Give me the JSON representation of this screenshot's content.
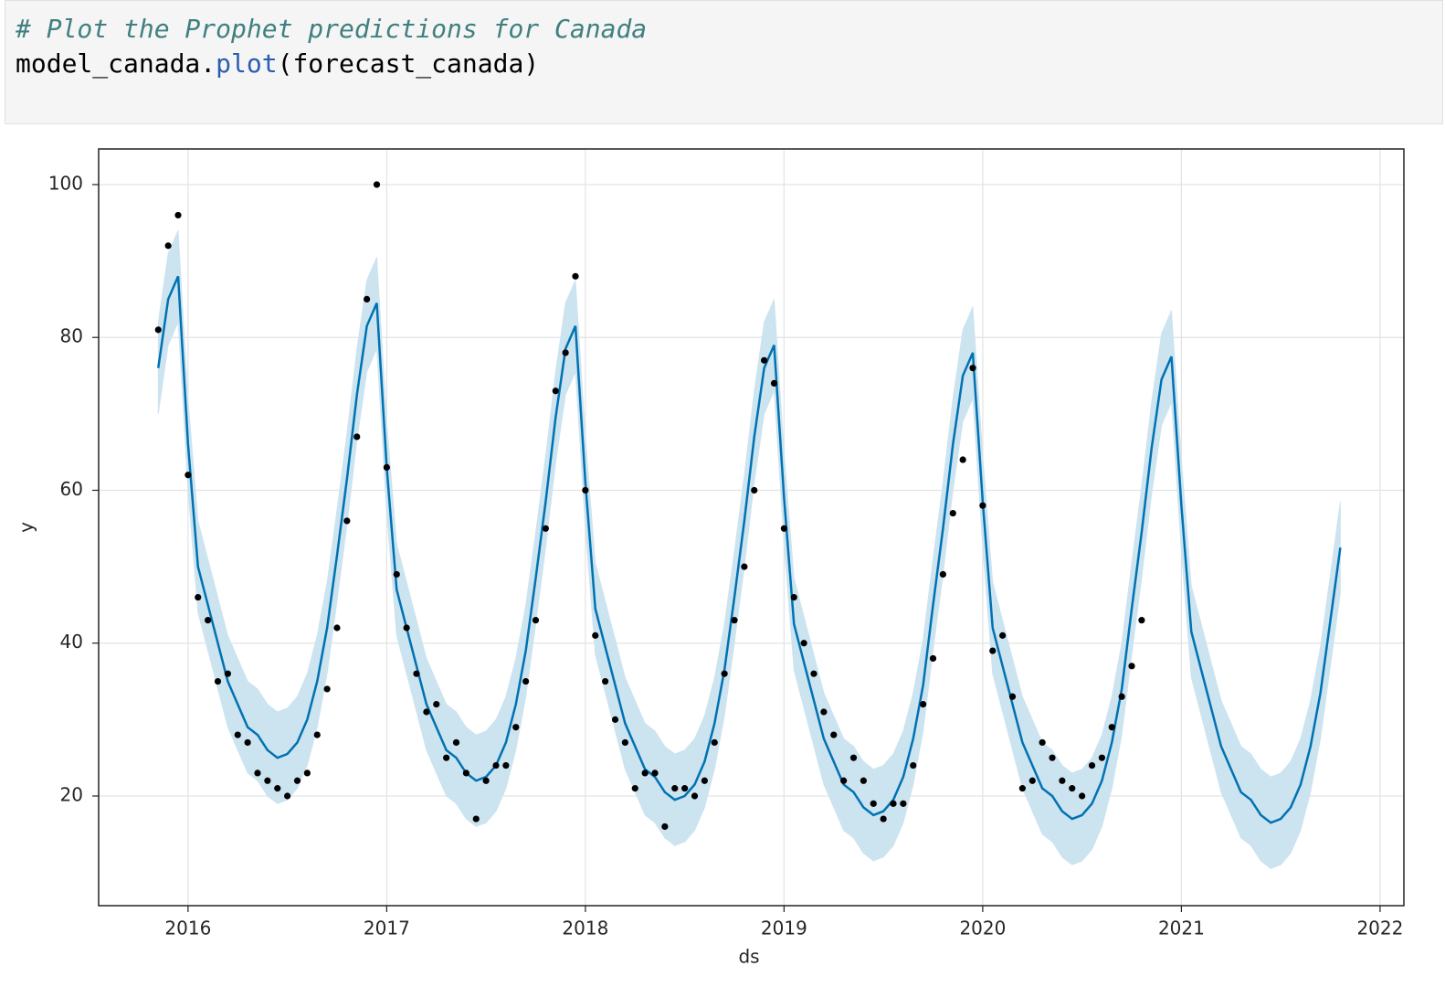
{
  "code": {
    "lines": [
      [
        {
          "text": "# Plot the Prophet predictions for Canada",
          "color": "#408080"
        }
      ],
      [
        {
          "text": "model_canada.",
          "color": "#000000"
        },
        {
          "text": "plot",
          "color": "#2a5db0"
        },
        {
          "text": "(forecast_canada)",
          "color": "#000000"
        }
      ]
    ]
  },
  "chart_data": {
    "type": "line",
    "xlabel": "ds",
    "ylabel": "y",
    "xlim": [
      2015.55,
      2022.12
    ],
    "ylim": [
      5.65,
      104.66
    ],
    "xticks": [
      2016,
      2017,
      2018,
      2019,
      2020,
      2021,
      2022
    ],
    "yticks": [
      20,
      40,
      60,
      80,
      100
    ],
    "grid": true,
    "x": [
      2015.85,
      2015.9,
      2015.95,
      2016,
      2016.05,
      2016.1,
      2016.15,
      2016.2,
      2016.25,
      2016.3,
      2016.35,
      2016.4,
      2016.45,
      2016.5,
      2016.55,
      2016.6,
      2016.65,
      2016.7,
      2016.75,
      2016.8,
      2016.85,
      2016.9,
      2016.95,
      2017,
      2017.05,
      2017.1,
      2017.15,
      2017.2,
      2017.25,
      2017.3,
      2017.35,
      2017.4,
      2017.45,
      2017.5,
      2017.55,
      2017.6,
      2017.65,
      2017.7,
      2017.75,
      2017.8,
      2017.85,
      2017.9,
      2017.95,
      2018,
      2018.05,
      2018.1,
      2018.15,
      2018.2,
      2018.25,
      2018.3,
      2018.35,
      2018.4,
      2018.45,
      2018.5,
      2018.55,
      2018.6,
      2018.65,
      2018.7,
      2018.75,
      2018.8,
      2018.85,
      2018.9,
      2018.95,
      2019,
      2019.05,
      2019.1,
      2019.15,
      2019.2,
      2019.25,
      2019.3,
      2019.35,
      2019.4,
      2019.45,
      2019.5,
      2019.55,
      2019.6,
      2019.65,
      2019.7,
      2019.75,
      2019.8,
      2019.85,
      2019.9,
      2019.95,
      2020,
      2020.05,
      2020.1,
      2020.15,
      2020.2,
      2020.25,
      2020.3,
      2020.35,
      2020.4,
      2020.45,
      2020.5,
      2020.55,
      2020.6,
      2020.65,
      2020.7,
      2020.75,
      2020.8,
      2020.85,
      2020.9,
      2020.95,
      2021,
      2021.05,
      2021.1,
      2021.15,
      2021.2,
      2021.25,
      2021.3,
      2021.35,
      2021.4,
      2021.45,
      2021.5,
      2021.55,
      2021.6,
      2021.65,
      2021.7,
      2021.75,
      2021.8
    ],
    "interval": {
      "color": "#cce3f0",
      "upper": [
        82,
        91,
        94,
        72,
        56,
        51,
        46,
        41,
        38,
        35,
        34,
        32,
        31,
        31.5,
        33,
        36,
        41,
        48,
        57.5,
        67.5,
        78.5,
        87.5,
        90.5,
        69,
        53,
        48,
        43,
        38,
        35,
        32,
        31,
        29,
        28,
        28.5,
        30,
        33,
        38,
        45,
        54.5,
        64.5,
        75.5,
        84.5,
        87.5,
        67,
        50.5,
        45.5,
        40.5,
        35.5,
        32.5,
        29.5,
        28.5,
        26.5,
        25.5,
        26,
        27.5,
        30.5,
        35.5,
        42.5,
        52,
        62,
        73,
        82,
        85,
        65,
        48.5,
        43.5,
        38.5,
        33.5,
        30.5,
        27.5,
        26.5,
        24.5,
        23.5,
        24,
        25.5,
        28.5,
        33.5,
        40.5,
        51,
        61,
        72,
        81,
        84,
        64.5,
        48,
        43,
        38,
        33,
        30,
        27,
        26,
        24,
        23,
        23.5,
        25,
        28,
        33,
        40,
        50.5,
        60.5,
        71.5,
        80.5,
        83.5,
        64,
        47.5,
        42.5,
        37.5,
        32.5,
        29.5,
        26.5,
        25.5,
        23.5,
        22.5,
        23,
        24.5,
        27.5,
        32.5,
        39.5,
        49,
        58.5
      ],
      "lower": [
        70,
        79,
        82,
        60,
        44,
        39,
        34,
        29,
        26,
        23,
        22,
        20,
        19,
        19.5,
        21,
        24,
        29,
        36,
        45.5,
        55.5,
        66.5,
        75.5,
        78.5,
        57,
        41,
        36,
        31,
        26,
        23,
        20,
        19,
        17,
        16,
        16.5,
        18,
        21,
        26,
        33,
        42.5,
        52.5,
        63.5,
        72.5,
        75.5,
        55,
        38.5,
        33.5,
        28.5,
        23.5,
        20.5,
        17.5,
        16.5,
        14.5,
        13.5,
        14,
        15.5,
        18.5,
        23.5,
        30.5,
        40,
        50,
        61,
        70,
        73,
        53,
        36.5,
        31.5,
        26.5,
        21.5,
        18.5,
        15.5,
        14.5,
        12.5,
        11.5,
        12,
        13.5,
        16.5,
        21.5,
        28.5,
        39,
        49,
        60,
        69,
        72,
        52.5,
        36,
        31,
        26,
        21,
        18,
        15,
        14,
        12,
        11,
        11.5,
        13,
        16,
        21,
        28,
        38.5,
        48.5,
        59.5,
        68.5,
        71.5,
        52,
        35.5,
        30.5,
        25.5,
        20.5,
        17.5,
        14.5,
        13.5,
        11.5,
        10.5,
        11,
        12.5,
        15.5,
        20.5,
        27.5,
        37,
        46.5
      ]
    },
    "forecast": {
      "color": "#0072b2",
      "values": [
        76,
        85,
        88,
        66,
        50,
        45,
        40,
        35,
        32,
        29,
        28,
        26,
        25,
        25.5,
        27,
        30,
        35,
        42,
        51.5,
        61.5,
        72.5,
        81.5,
        84.5,
        63,
        47,
        42,
        37,
        32,
        29,
        26,
        25,
        23,
        22,
        22.5,
        24,
        27,
        32,
        39,
        48.5,
        58.5,
        69.5,
        78.5,
        81.5,
        61,
        44.5,
        39.5,
        34.5,
        29.5,
        26.5,
        23.5,
        22.5,
        20.5,
        19.5,
        20,
        21.5,
        24.5,
        29.5,
        36.5,
        46,
        56,
        67,
        76,
        79,
        59,
        42.5,
        37.5,
        32.5,
        27.5,
        24.5,
        21.5,
        20.5,
        18.5,
        17.5,
        18,
        19.5,
        22.5,
        27.5,
        34.5,
        45,
        55,
        66,
        75,
        78,
        58.5,
        42,
        37,
        32,
        27,
        24,
        21,
        20,
        18,
        17,
        17.5,
        19,
        22,
        27,
        34,
        44.5,
        54.5,
        65.5,
        74.5,
        77.5,
        58,
        41.5,
        36.5,
        31.5,
        26.5,
        23.5,
        20.5,
        19.5,
        17.5,
        16.5,
        17,
        18.5,
        21.5,
        26.5,
        33.5,
        43,
        52.5
      ]
    },
    "observed": {
      "color": "#000000",
      "x": [
        2015.85,
        2015.9,
        2015.95,
        2016,
        2016.05,
        2016.1,
        2016.15,
        2016.2,
        2016.25,
        2016.3,
        2016.35,
        2016.4,
        2016.45,
        2016.5,
        2016.55,
        2016.6,
        2016.65,
        2016.7,
        2016.75,
        2016.8,
        2016.85,
        2016.9,
        2016.95,
        2017,
        2017.05,
        2017.1,
        2017.15,
        2017.2,
        2017.25,
        2017.3,
        2017.35,
        2017.4,
        2017.45,
        2017.5,
        2017.55,
        2017.6,
        2017.65,
        2017.7,
        2017.75,
        2017.8,
        2017.85,
        2017.9,
        2017.95,
        2018,
        2018.05,
        2018.1,
        2018.15,
        2018.2,
        2018.25,
        2018.3,
        2018.35,
        2018.4,
        2018.45,
        2018.5,
        2018.55,
        2018.6,
        2018.65,
        2018.7,
        2018.75,
        2018.8,
        2018.85,
        2018.9,
        2018.95,
        2019,
        2019.05,
        2019.1,
        2019.15,
        2019.2,
        2019.25,
        2019.3,
        2019.35,
        2019.4,
        2019.45,
        2019.5,
        2019.55,
        2019.6,
        2019.65,
        2019.7,
        2019.75,
        2019.8,
        2019.85,
        2019.9,
        2019.95,
        2020,
        2020.05,
        2020.1,
        2020.15,
        2020.2,
        2020.25,
        2020.3,
        2020.35,
        2020.4,
        2020.45,
        2020.5,
        2020.55,
        2020.6,
        2020.65,
        2020.7,
        2020.75,
        2020.8
      ],
      "values": [
        81,
        92,
        96,
        62,
        46,
        43,
        35,
        36,
        28,
        27,
        23,
        22,
        21,
        20,
        22,
        23,
        28,
        34,
        42,
        56,
        67,
        85,
        100,
        63,
        49,
        42,
        36,
        31,
        32,
        25,
        27,
        23,
        17,
        22,
        24,
        24,
        29,
        35,
        43,
        55,
        73,
        78,
        88,
        60,
        41,
        35,
        30,
        27,
        21,
        23,
        23,
        16,
        21,
        21,
        20,
        22,
        27,
        36,
        43,
        50,
        60,
        77,
        74,
        55,
        46,
        40,
        36,
        31,
        28,
        22,
        25,
        22,
        19,
        17,
        19,
        19,
        24,
        32,
        38,
        49,
        57,
        64,
        76,
        58,
        39,
        41,
        33,
        21,
        22,
        27,
        25,
        22,
        21,
        20,
        24,
        25,
        29,
        33,
        37,
        43
      ]
    }
  }
}
